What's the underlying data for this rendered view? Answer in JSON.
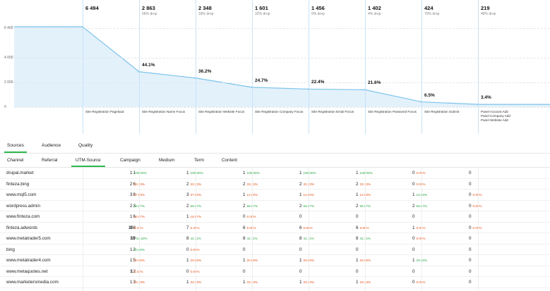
{
  "funnel": {
    "y_ticks": [
      "6 400",
      "4 000",
      "2 000",
      "0"
    ],
    "steps": [
      {
        "count": "6 494",
        "drop": "",
        "pct": "",
        "name": [
          "Site Registration Pageload"
        ]
      },
      {
        "count": "2 863",
        "drop": "56% drop",
        "pct": "44.1%",
        "name": [
          "Site Registration Name Focus"
        ]
      },
      {
        "count": "2 348",
        "drop": "18% drop",
        "pct": "36.2%",
        "name": [
          "Site Registration Website Focus"
        ]
      },
      {
        "count": "1 601",
        "drop": "32% drop",
        "pct": "24.7%",
        "name": [
          "Site Registration Company Focus"
        ]
      },
      {
        "count": "1 456",
        "drop": "9% drop",
        "pct": "22.4%",
        "name": [
          "Site Registration Email Focus"
        ]
      },
      {
        "count": "1 402",
        "drop": "4% drop",
        "pct": "21.6%",
        "name": [
          "Site Registration Password Focus"
        ]
      },
      {
        "count": "424",
        "drop": "70% drop",
        "pct": "6.5%",
        "name": [
          "Site Registration Submit"
        ]
      },
      {
        "count": "219",
        "drop": "48% drop",
        "pct": "3.4%",
        "name": [
          "Panel Account Add",
          "Panel Company Add",
          "Panel Website Add"
        ]
      }
    ],
    "series_values": [
      6494,
      6494,
      2863,
      2348,
      1601,
      1456,
      1402,
      424,
      219,
      219
    ],
    "colors": {
      "line": "#7cc4ec",
      "fill": "#e3f1fb",
      "grid": "#e4e6ea"
    }
  },
  "tabs": [
    {
      "label": "Sources",
      "active": true
    },
    {
      "label": "Audience",
      "active": false
    },
    {
      "label": "Quality",
      "active": false
    }
  ],
  "subtabs": [
    {
      "label": "Channel",
      "active": false
    },
    {
      "label": "Referral",
      "active": false
    },
    {
      "label": "UTM-Source",
      "active": true
    },
    {
      "label": "Campaign",
      "active": false
    },
    {
      "label": "Medium",
      "active": false
    },
    {
      "label": "Term",
      "active": false
    },
    {
      "label": "Content",
      "active": false
    }
  ],
  "rows": [
    {
      "name": "drupal.market",
      "total": "1",
      "steps": [
        [
          "1",
          "100.00%",
          "g"
        ],
        [
          "1",
          "100.00%",
          "g"
        ],
        [
          "1",
          "100.00%",
          "g"
        ],
        [
          "1",
          "100.00%",
          "g"
        ],
        [
          "1",
          "100.00%",
          "g"
        ],
        [
          "0",
          "0.00%",
          "o"
        ],
        [
          "0",
          "",
          ""
        ]
      ]
    },
    {
      "name": "finteza.bing",
      "total": "6",
      "steps": [
        [
          "2",
          "33.33%",
          "o"
        ],
        [
          "2",
          "33.33%",
          "o"
        ],
        [
          "2",
          "33.33%",
          "o"
        ],
        [
          "2",
          "33.33%",
          "o"
        ],
        [
          "2",
          "33.33%",
          "o"
        ],
        [
          "0",
          "0.00%",
          "o"
        ],
        [
          "0",
          "",
          ""
        ]
      ]
    },
    {
      "name": "www.mql5.com",
      "total": "8",
      "steps": [
        [
          "3",
          "37.50%",
          "o"
        ],
        [
          "3",
          "37.50%",
          "o"
        ],
        [
          "1",
          "12.50%",
          "o"
        ],
        [
          "1",
          "12.50%",
          "o"
        ],
        [
          "1",
          "12.50%",
          "o"
        ],
        [
          "1",
          "12.50%",
          "g"
        ],
        [
          "0",
          "0.00%",
          "o"
        ]
      ]
    },
    {
      "name": "wordpress.admin",
      "total": "3",
      "steps": [
        [
          "2",
          "66.67%",
          "g"
        ],
        [
          "2",
          "66.67%",
          "g"
        ],
        [
          "2",
          "66.67%",
          "g"
        ],
        [
          "2",
          "66.67%",
          "g"
        ],
        [
          "2",
          "66.67%",
          "g"
        ],
        [
          "2",
          "66.67%",
          "g"
        ],
        [
          "0",
          "0.00%",
          "o"
        ]
      ]
    },
    {
      "name": "www.finteza.com",
      "total": "6",
      "steps": [
        [
          "1",
          "16.67%",
          "o"
        ],
        [
          "1",
          "16.67%",
          "o"
        ],
        [
          "0",
          "0.00%",
          "o"
        ],
        [
          "0",
          "",
          ""
        ],
        [
          "0",
          "",
          ""
        ],
        [
          "0",
          "",
          ""
        ],
        [
          "0",
          "",
          ""
        ]
      ]
    },
    {
      "name": "finteza.adwords",
      "total": "108",
      "steps": [
        [
          "9",
          "8.33%",
          "o"
        ],
        [
          "7",
          "6.48%",
          "o"
        ],
        [
          "6",
          "5.56%",
          "o"
        ],
        [
          "6",
          "5.56%",
          "o"
        ],
        [
          "6",
          "5.56%",
          "o"
        ],
        [
          "1",
          "0.93%",
          "o"
        ],
        [
          "0",
          "0.00%",
          "o"
        ]
      ]
    },
    {
      "name": "www.metatrader5.com",
      "total": "19",
      "steps": [
        [
          "10",
          "52.63%",
          "g"
        ],
        [
          "8",
          "42.11%",
          "g"
        ],
        [
          "8",
          "42.11%",
          "g"
        ],
        [
          "8",
          "42.11%",
          "g"
        ],
        [
          "8",
          "42.11%",
          "g"
        ],
        [
          "0",
          "0.00%",
          "o"
        ],
        [
          "0",
          "",
          ""
        ]
      ]
    },
    {
      "name": "bing",
      "total": "2",
      "steps": [
        [
          "1",
          "50.00%",
          "g"
        ],
        [
          "0",
          "0.00%",
          "o"
        ],
        [
          "0",
          "",
          ""
        ],
        [
          "0",
          "",
          ""
        ],
        [
          "0",
          "",
          ""
        ],
        [
          "0",
          "",
          ""
        ],
        [
          "0",
          "",
          ""
        ]
      ]
    },
    {
      "name": "www.metatrader4.com",
      "total": "5",
      "steps": [
        [
          "1",
          "20.00%",
          "o"
        ],
        [
          "1",
          "20.00%",
          "o"
        ],
        [
          "1",
          "20.00%",
          "o"
        ],
        [
          "1",
          "20.00%",
          "o"
        ],
        [
          "1",
          "20.00%",
          "o"
        ],
        [
          "1",
          "20.00%",
          "g"
        ],
        [
          "0",
          "",
          ""
        ]
      ]
    },
    {
      "name": "www.metaquotes.net",
      "total": "12",
      "steps": [
        [
          "1",
          "8.33%",
          "o"
        ],
        [
          "0",
          "0.00%",
          "o"
        ],
        [
          "0",
          "",
          ""
        ],
        [
          "0",
          "",
          ""
        ],
        [
          "0",
          "",
          ""
        ],
        [
          "0",
          "",
          ""
        ],
        [
          "0",
          "",
          ""
        ]
      ]
    },
    {
      "name": "www.marketersmedia.com",
      "total": "3",
      "steps": [
        [
          "1",
          "33.33%",
          "o"
        ],
        [
          "1",
          "33.33%",
          "o"
        ],
        [
          "1",
          "33.33%",
          "o"
        ],
        [
          "1",
          "33.33%",
          "o"
        ],
        [
          "1",
          "33.33%",
          "o"
        ],
        [
          "0",
          "0.00%",
          "o"
        ],
        [
          "0",
          "",
          ""
        ]
      ]
    }
  ]
}
